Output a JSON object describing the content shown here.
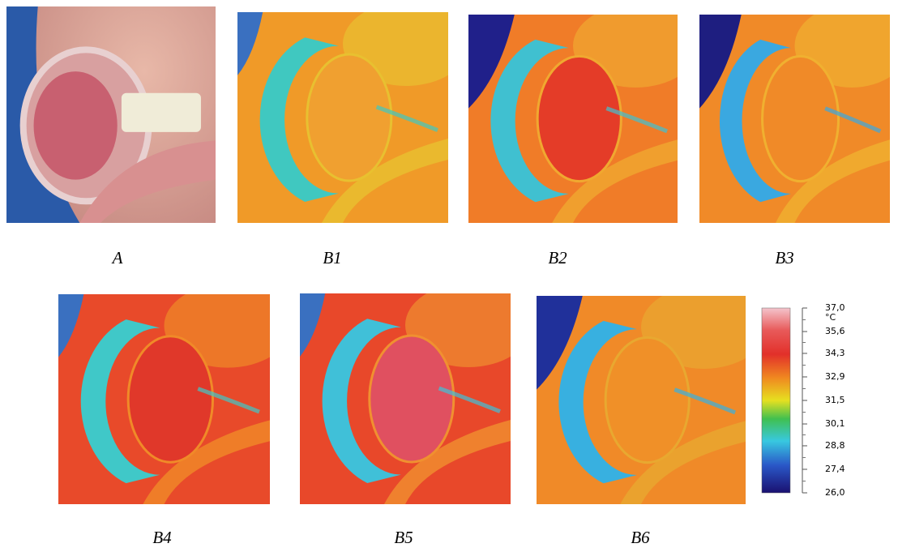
{
  "panels": [
    {
      "label": "A"
    },
    {
      "label": "B1"
    },
    {
      "label": "B2"
    },
    {
      "label": "B3"
    },
    {
      "label": "B4"
    },
    {
      "label": "B5"
    },
    {
      "label": "B6"
    }
  ],
  "colorbar": {
    "unit": "°C",
    "lim": [
      26.0,
      37.0
    ],
    "ticks": [
      {
        "value": 37.0,
        "label": "37,0"
      },
      {
        "value": 35.6,
        "label": "35,6"
      },
      {
        "value": 34.3,
        "label": "34,3"
      },
      {
        "value": 32.9,
        "label": "32,9"
      },
      {
        "value": 31.5,
        "label": "31,5"
      },
      {
        "value": 30.1,
        "label": "30,1"
      },
      {
        "value": 28.8,
        "label": "28,8"
      },
      {
        "value": 27.4,
        "label": "27,4"
      },
      {
        "value": 26.0,
        "label": "26,0"
      }
    ]
  }
}
